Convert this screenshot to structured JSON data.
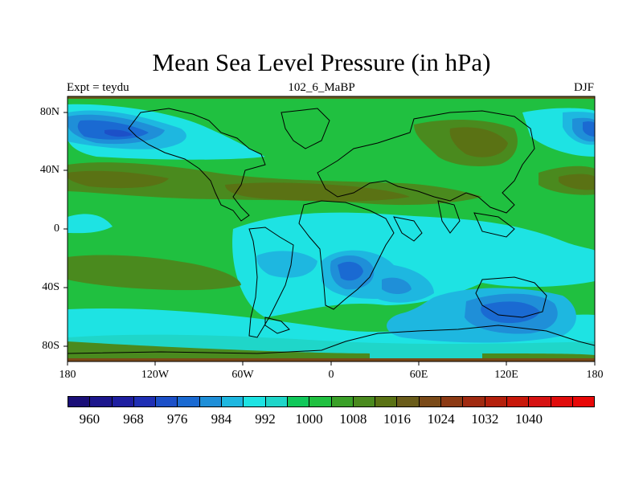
{
  "title": "Mean Sea Level Pressure (in hPa)",
  "subtitle": {
    "left": "Expt = teydu",
    "center": "102_6_MaBP",
    "right": "DJF"
  },
  "axes": {
    "x_ticks": [
      "180",
      "120W",
      "60W",
      "0",
      "60E",
      "120E",
      "180"
    ],
    "y_ticks": [
      "80N",
      "40N",
      "0",
      "40S",
      "80S"
    ]
  },
  "colorbar": {
    "labels": [
      "960",
      "968",
      "976",
      "984",
      "992",
      "1000",
      "1008",
      "1016",
      "1024",
      "1032",
      "1040"
    ],
    "colors": [
      "#1a0f78",
      "#1c168c",
      "#1e1ea0",
      "#1f2fb4",
      "#1c50c8",
      "#1a6ad2",
      "#1f8fd8",
      "#1eb7e0",
      "#1ee3e3",
      "#1fd6c9",
      "#10c85a",
      "#20c040",
      "#3aa028",
      "#4a8a1e",
      "#5a7214",
      "#6a5c1a",
      "#7a4a18",
      "#8c3a14",
      "#a02a10",
      "#b4200c",
      "#c8180a",
      "#d61212",
      "#e00c0c",
      "#e80808"
    ]
  },
  "regions": {
    "high_pressure": [
      "North Pacific 40N",
      "North Atlantic subtropical 30N",
      "Siberia / Central Asia",
      "South Pacific 30S",
      "Southern Indian Ocean 30S"
    ],
    "low_pressure": [
      "Aleutian Low 65N",
      "Icelandic / North Pacific 70N",
      "Southern Ocean 60S",
      "South Atlantic 35S"
    ]
  }
}
